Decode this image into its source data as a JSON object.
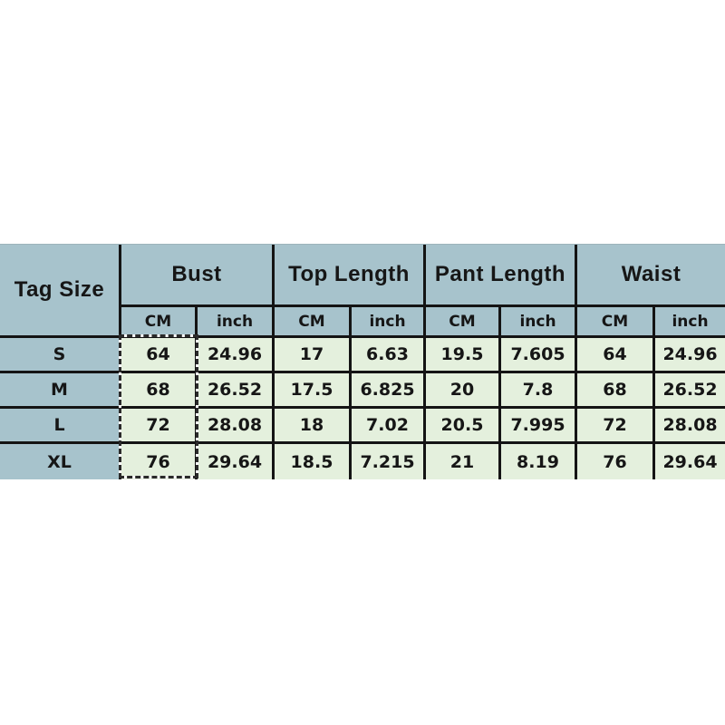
{
  "colors": {
    "page_background": "#ffffff",
    "header_cell_bg": "#a7c3cc",
    "data_cell_bg": "#e4f0dd",
    "grid_border": "#141414",
    "selection_dash": "#2a2a2a",
    "selection_gap": "#fdfdfd"
  },
  "table": {
    "corner_label": "Tag Size",
    "groups": [
      "Bust",
      "Top Length",
      "Pant Length",
      "Waist"
    ],
    "unit_cm": "CM",
    "unit_inch": "inch",
    "rows": [
      {
        "size": "S",
        "values": [
          "64",
          "24.96",
          "17",
          "6.63",
          "19.5",
          "7.605",
          "64",
          "24.96"
        ]
      },
      {
        "size": "M",
        "values": [
          "68",
          "26.52",
          "17.5",
          "6.825",
          "20",
          "7.8",
          "68",
          "26.52"
        ]
      },
      {
        "size": "L",
        "values": [
          "72",
          "28.08",
          "18",
          "7.02",
          "20.5",
          "7.995",
          "72",
          "28.08"
        ]
      },
      {
        "size": "XL",
        "values": [
          "76",
          "29.64",
          "18.5",
          "7.215",
          "21",
          "8.19",
          "76",
          "29.64"
        ]
      }
    ]
  },
  "chart_data": {
    "type": "table",
    "title": "Garment size chart",
    "column_groups": [
      "Bust",
      "Top Length",
      "Pant Length",
      "Waist"
    ],
    "units_per_group": [
      "CM",
      "inch"
    ],
    "columns": [
      "Tag Size",
      "Bust CM",
      "Bust inch",
      "Top Length CM",
      "Top Length inch",
      "Pant Length CM",
      "Pant Length inch",
      "Waist CM",
      "Waist inch"
    ],
    "rows": [
      [
        "S",
        64,
        24.96,
        17,
        6.63,
        19.5,
        7.605,
        64,
        24.96
      ],
      [
        "M",
        68,
        26.52,
        17.5,
        6.825,
        20,
        7.8,
        68,
        26.52
      ],
      [
        "L",
        72,
        28.08,
        18,
        7.02,
        20.5,
        7.995,
        72,
        28.08
      ],
      [
        "XL",
        76,
        29.64,
        18.5,
        7.215,
        21,
        8.19,
        76,
        29.64
      ]
    ],
    "notes": "Bust CM column highlighted with dashed marching-ants selection"
  }
}
